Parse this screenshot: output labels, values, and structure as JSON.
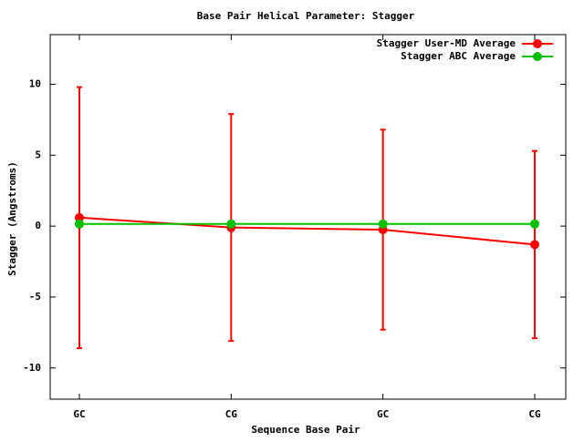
{
  "chart_data": {
    "type": "line",
    "title": "Base Pair Helical Parameter: Stagger",
    "x_label": "Sequence Base Pair",
    "y_label": "Stagger (Angstroms)",
    "categories": [
      "GC",
      "CG",
      "GC",
      "CG"
    ],
    "series": [
      {
        "name": "Stagger User-MD Average",
        "color": "#ff0000",
        "values": [
          0.6,
          -0.1,
          -0.25,
          -1.3
        ],
        "errors": [
          9.2,
          8.0,
          7.05,
          6.6
        ]
      },
      {
        "name": "Stagger ABC Average",
        "color": "#00c000",
        "values": [
          0.15,
          0.15,
          0.15,
          0.15
        ]
      }
    ],
    "ylim": [
      -12.2,
      13.5
    ],
    "yticks": [
      -10,
      -5,
      0,
      5,
      10
    ],
    "legend": "top-right"
  }
}
